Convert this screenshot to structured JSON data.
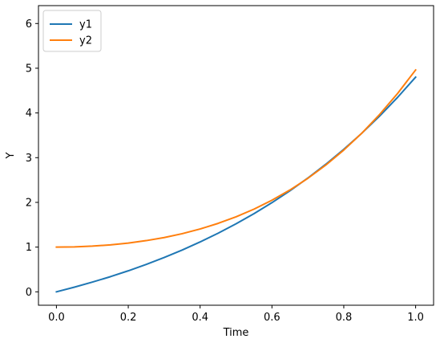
{
  "chart_data": {
    "type": "line",
    "title": "",
    "xlabel": "Time",
    "ylabel": "Y",
    "xlim": [
      -0.05,
      1.05
    ],
    "ylim": [
      -0.3,
      6.4
    ],
    "xticks": [
      0.0,
      0.2,
      0.4,
      0.6,
      0.8,
      1.0
    ],
    "xtick_labels": [
      "0.0",
      "0.2",
      "0.4",
      "0.6",
      "0.8",
      "1.0"
    ],
    "yticks": [
      0,
      1,
      2,
      3,
      4,
      5,
      6
    ],
    "ytick_labels": [
      "0",
      "1",
      "2",
      "3",
      "4",
      "5",
      "6"
    ],
    "grid": false,
    "legend_position": "top-left",
    "x": [
      0.0,
      0.05,
      0.1,
      0.15,
      0.2,
      0.25,
      0.3,
      0.35,
      0.4,
      0.45,
      0.5,
      0.55,
      0.6,
      0.65,
      0.7,
      0.75,
      0.8,
      0.85,
      0.9,
      0.95,
      1.0
    ],
    "series": [
      {
        "name": "y1",
        "color": "#1f77b4",
        "values": [
          0.0,
          0.104,
          0.217,
          0.338,
          0.47,
          0.613,
          0.767,
          0.934,
          1.115,
          1.31,
          1.521,
          1.748,
          1.994,
          2.259,
          2.545,
          2.853,
          3.186,
          3.545,
          3.932,
          4.35,
          4.8
        ]
      },
      {
        "name": "y2",
        "color": "#ff7f0e",
        "values": [
          1.0,
          1.005,
          1.022,
          1.049,
          1.09,
          1.145,
          1.214,
          1.3,
          1.405,
          1.53,
          1.677,
          1.849,
          2.048,
          2.277,
          2.538,
          2.835,
          3.17,
          3.546,
          3.968,
          4.438,
          4.961
        ]
      }
    ]
  }
}
